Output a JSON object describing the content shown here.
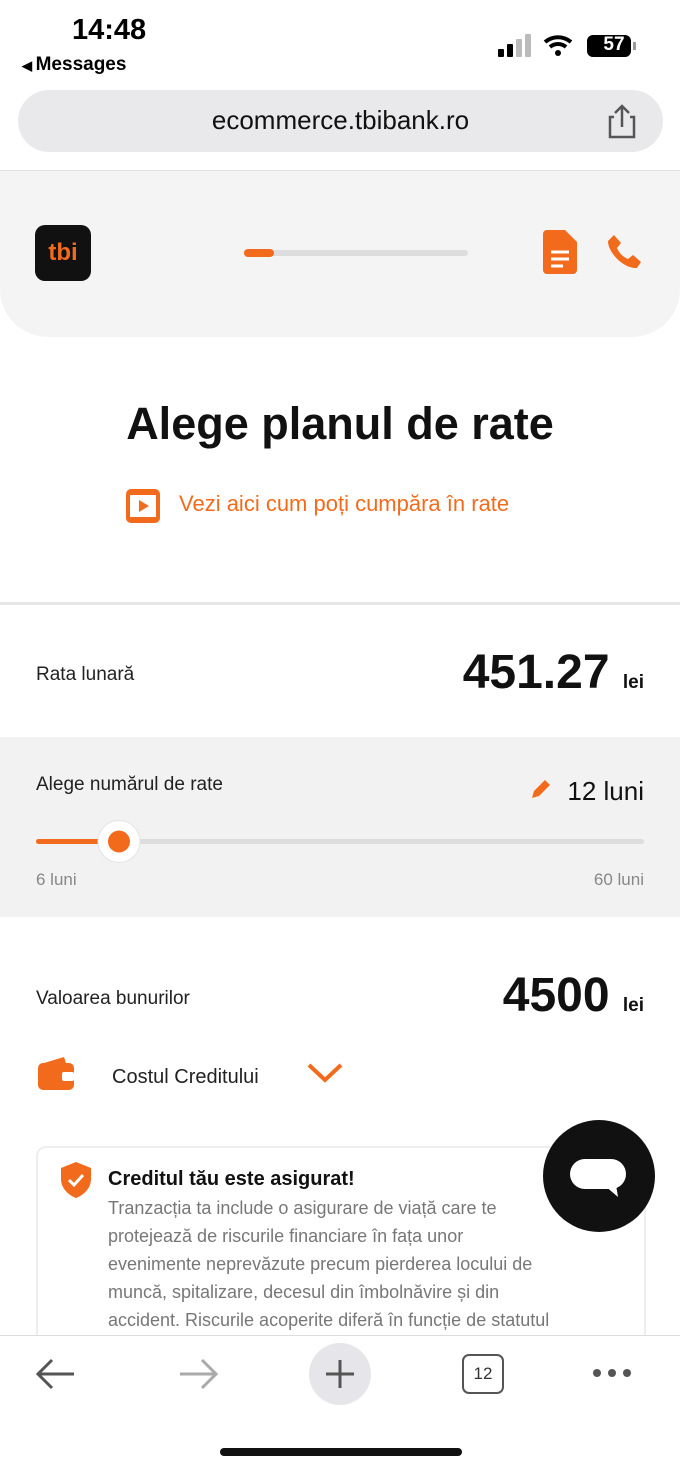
{
  "status_bar": {
    "time": "14:48",
    "back": "Messages",
    "battery": "57"
  },
  "browser": {
    "url": "ecommerce.tbibank.ro",
    "tab_count": "12"
  },
  "header": {
    "logo": "tbi"
  },
  "page": {
    "title": "Alege planul de rate",
    "video_link": "Vezi aici cum poți cumpăra în rate"
  },
  "monthly_rate": {
    "label": "Rata lunară",
    "amount": "451.27",
    "currency": "lei"
  },
  "installments": {
    "label": "Alege numărul de rate",
    "selected": "12 luni",
    "min_label": "6 luni",
    "max_label": "60 luni"
  },
  "goods_value": {
    "label": "Valoarea bunurilor",
    "amount": "4500",
    "currency": "lei"
  },
  "credit_cost": {
    "label": "Costul Creditului"
  },
  "insurance": {
    "title": "Creditul tău este asigurat!",
    "lines": [
      "Tranzacția ta include o asigurare de viață care te",
      "protejează de riscurile financiare în fața unor",
      "evenimente neprevăzute precum pierderea locului de",
      "muncă, spitalizare, decesul din îmbolnăvire și din",
      "accident. Riscurile acoperite diferă în funcție de statutul"
    ]
  }
}
